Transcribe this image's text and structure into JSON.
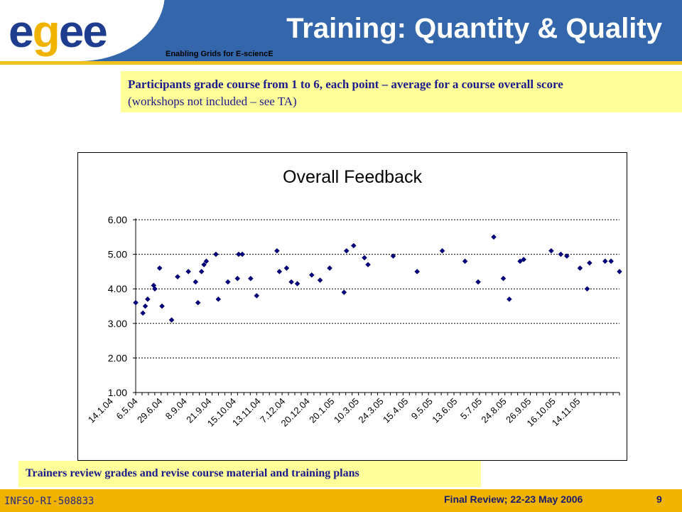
{
  "header": {
    "logo_letters": [
      "e",
      "g",
      "e",
      "e"
    ],
    "logo_colors": [
      "#1f3d8f",
      "#f0b400",
      "#1f3d8f",
      "#1f3d8f"
    ],
    "tagline": "Enabling Grids for E-sciencE",
    "title": "Training: Quantity & Quality"
  },
  "notes": {
    "top_line1": "Participants grade course from 1 to 6, each point – average for a course overall score",
    "top_line2": "(workshops not included – see TA)",
    "bottom": "Trainers review grades and revise course material and training plans"
  },
  "footer": {
    "left": "INFSO-RI-508833",
    "center": "Final Review; 22-23 May 2006",
    "page": "9"
  },
  "colors": {
    "header_bg": "#3366aa",
    "note_bg": "#ffff99",
    "footer_bg": "#f0b400",
    "marker": "#000080"
  },
  "chart_data": {
    "type": "scatter",
    "title": "Overall Feedback",
    "xlabel": "",
    "ylabel": "",
    "ylim": [
      1,
      6
    ],
    "yticks": [
      "1.00",
      "2.00",
      "3.00",
      "4.00",
      "5.00",
      "6.00"
    ],
    "grid": true,
    "x_categories": [
      "14.1.04",
      "6.5.04",
      "29.6.04",
      "8.9.04",
      "21.9.04",
      "15.10.04",
      "13.11.04",
      "7.12.04",
      "20.12.04",
      "20.1.05",
      "10.3.05",
      "24.3.05",
      "15.4.05",
      "9.5.05",
      "13.6.05",
      "5.7.05",
      "24.8.05",
      "26.9.05",
      "16.10.05",
      "14.11.05"
    ],
    "x_range": [
      0,
      20.2
    ],
    "points": [
      [
        0.0,
        3.6
      ],
      [
        0.3,
        3.3
      ],
      [
        0.4,
        3.5
      ],
      [
        0.5,
        3.7
      ],
      [
        0.75,
        4.1
      ],
      [
        0.8,
        4.0
      ],
      [
        1.0,
        4.6
      ],
      [
        1.1,
        3.5
      ],
      [
        1.5,
        3.1
      ],
      [
        1.75,
        4.35
      ],
      [
        2.2,
        4.5
      ],
      [
        2.5,
        4.2
      ],
      [
        2.6,
        3.6
      ],
      [
        2.75,
        4.5
      ],
      [
        2.85,
        4.7
      ],
      [
        2.95,
        4.8
      ],
      [
        3.35,
        5.0
      ],
      [
        3.45,
        3.7
      ],
      [
        3.85,
        4.2
      ],
      [
        4.25,
        4.3
      ],
      [
        4.3,
        5.0
      ],
      [
        4.45,
        5.0
      ],
      [
        4.8,
        4.3
      ],
      [
        5.05,
        3.8
      ],
      [
        5.9,
        5.1
      ],
      [
        6.0,
        4.5
      ],
      [
        6.3,
        4.6
      ],
      [
        6.5,
        4.2
      ],
      [
        6.75,
        4.15
      ],
      [
        7.35,
        4.4
      ],
      [
        7.7,
        4.25
      ],
      [
        8.1,
        4.6
      ],
      [
        8.7,
        3.9
      ],
      [
        8.8,
        5.1
      ],
      [
        9.1,
        5.25
      ],
      [
        9.55,
        4.9
      ],
      [
        9.7,
        4.7
      ],
      [
        10.75,
        4.95
      ],
      [
        11.75,
        4.5
      ],
      [
        12.8,
        5.1
      ],
      [
        13.75,
        4.8
      ],
      [
        14.3,
        4.2
      ],
      [
        14.95,
        5.5
      ],
      [
        15.35,
        4.3
      ],
      [
        15.6,
        3.7
      ],
      [
        16.05,
        4.8
      ],
      [
        16.2,
        4.85
      ],
      [
        17.35,
        5.1
      ],
      [
        17.75,
        5.0
      ],
      [
        18.0,
        4.95
      ],
      [
        18.55,
        4.6
      ],
      [
        18.85,
        4.0
      ],
      [
        18.95,
        4.75
      ],
      [
        19.6,
        4.8
      ],
      [
        19.85,
        4.8
      ],
      [
        20.2,
        4.5
      ]
    ]
  }
}
